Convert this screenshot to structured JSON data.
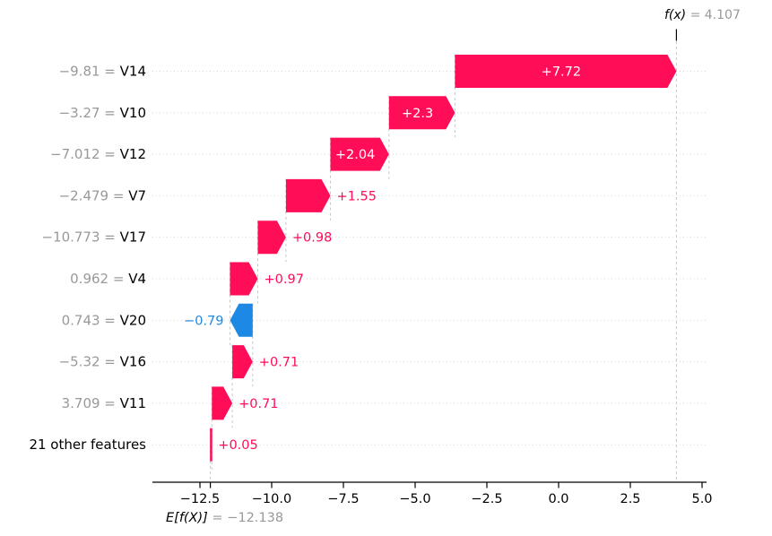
{
  "chart_data": {
    "type": "bar",
    "variant": "shap-waterfall",
    "title": "",
    "xlabel": "",
    "ylabel": "",
    "xlim": [
      -14.2,
      5.2
    ],
    "grid": "horizontal-dotted",
    "fx": {
      "label": "f(x)",
      "equals": " = 4.107",
      "value": 4.107
    },
    "expected": {
      "label": "E[f(X)]",
      "equals": " = −12.138",
      "value": -12.138
    },
    "x_ticks": {
      "values": [
        -12.5,
        -10.0,
        -7.5,
        -5.0,
        -2.5,
        0.0,
        2.5,
        5.0
      ],
      "labels": [
        "−12.5",
        "−10.0",
        "−7.5",
        "−5.0",
        "−2.5",
        "0.0",
        "2.5",
        "5.0"
      ]
    },
    "colors": {
      "positive": "#ff0d57",
      "negative": "#1e88e5",
      "inside_label": "#ffffff",
      "muted_text": "#999999",
      "axis_text": "#000000",
      "gridline": "#d6d6d6",
      "connector": "#c6c6c6"
    },
    "rows": [
      {
        "feature": "V14",
        "value_label": "−9.81",
        "shap": 7.72,
        "bar_label": "+7.72",
        "label_pos": "inside"
      },
      {
        "feature": "V10",
        "value_label": "−3.27",
        "shap": 2.3,
        "bar_label": "+2.3",
        "label_pos": "inside"
      },
      {
        "feature": "V12",
        "value_label": "−7.012",
        "shap": 2.04,
        "bar_label": "+2.04",
        "label_pos": "inside"
      },
      {
        "feature": "V7",
        "value_label": "−2.479",
        "shap": 1.55,
        "bar_label": "+1.55",
        "label_pos": "right"
      },
      {
        "feature": "V17",
        "value_label": "−10.773",
        "shap": 0.98,
        "bar_label": "+0.98",
        "label_pos": "right"
      },
      {
        "feature": "V4",
        "value_label": "0.962",
        "shap": 0.97,
        "bar_label": "+0.97",
        "label_pos": "right"
      },
      {
        "feature": "V20",
        "value_label": "0.743",
        "shap": -0.79,
        "bar_label": "−0.79",
        "label_pos": "left"
      },
      {
        "feature": "V16",
        "value_label": "−5.32",
        "shap": 0.71,
        "bar_label": "+0.71",
        "label_pos": "right"
      },
      {
        "feature": "V11",
        "value_label": "3.709",
        "shap": 0.71,
        "bar_label": "+0.71",
        "label_pos": "right"
      },
      {
        "feature": "21 other features",
        "value_label": "",
        "shap": 0.05,
        "bar_label": "+0.05",
        "label_pos": "right"
      }
    ]
  }
}
